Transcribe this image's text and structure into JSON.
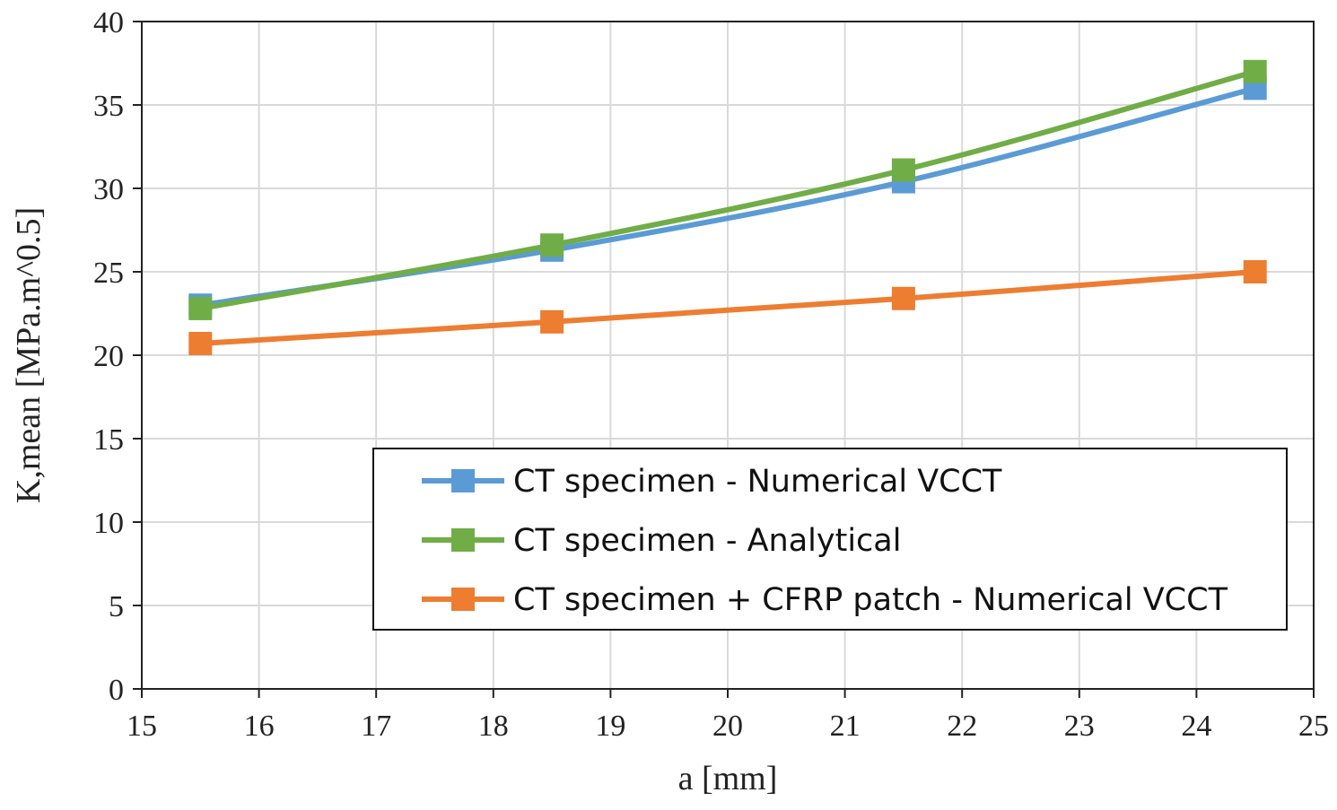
{
  "chart_data": {
    "type": "line",
    "title": "",
    "xlabel": "a [mm]",
    "ylabel": "K,mean [MPa.m^0.5]",
    "xlim": [
      15,
      25
    ],
    "ylim": [
      0,
      40
    ],
    "x_ticks": [
      "15",
      "16",
      "17",
      "18",
      "19",
      "20",
      "21",
      "22",
      "23",
      "24",
      "25"
    ],
    "y_ticks": [
      "0",
      "5",
      "10",
      "15",
      "20",
      "25",
      "30",
      "35",
      "40"
    ],
    "grid": true,
    "legend_position": "bottom-right",
    "x": [
      15.5,
      18.5,
      21.5,
      24.5
    ],
    "series": [
      {
        "name": "CT specimen - Numerical VCCT",
        "values": [
          23.0,
          26.3,
          30.4,
          36.0
        ],
        "color": "#5b9bd5"
      },
      {
        "name": "CT specimen - Analytical",
        "values": [
          22.8,
          26.6,
          31.1,
          37.0
        ],
        "color": "#70ad47"
      },
      {
        "name": "CT specimen + CFRP patch - Numerical VCCT",
        "values": [
          20.7,
          22.0,
          23.4,
          25.0
        ],
        "color": "#ed7d31"
      }
    ]
  }
}
